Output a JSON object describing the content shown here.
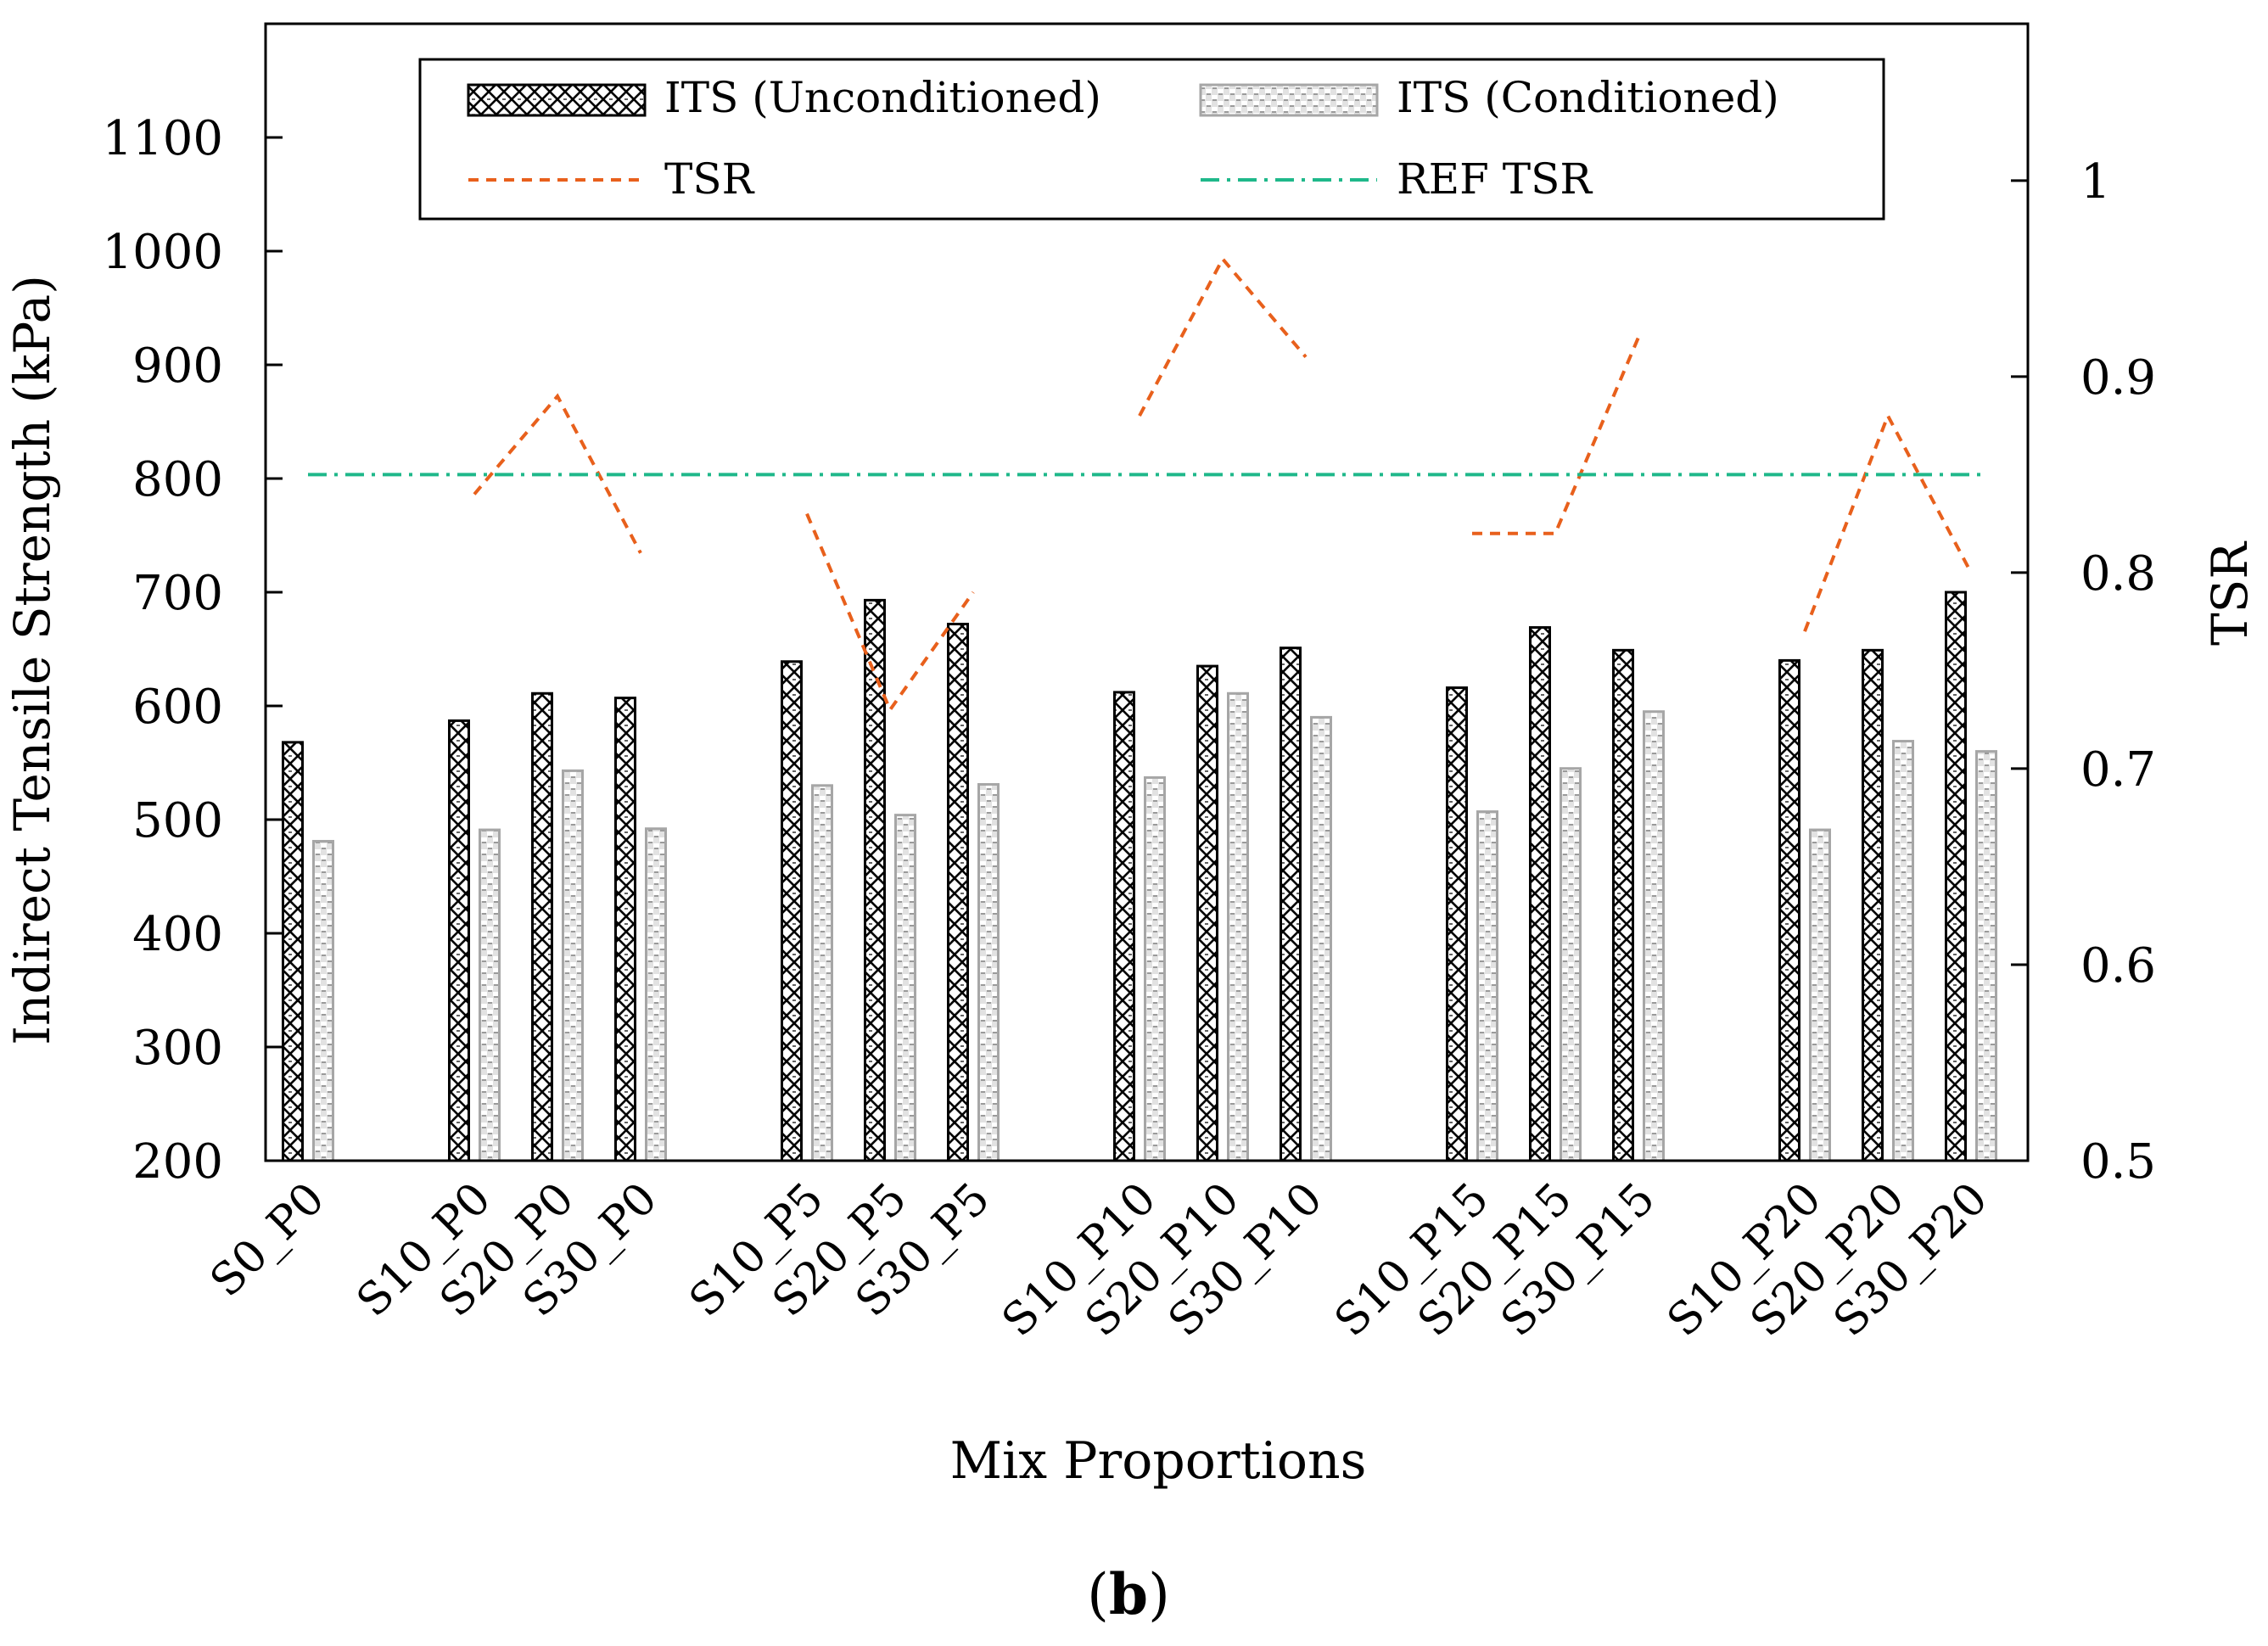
{
  "chart_data": {
    "type": "bar",
    "title": "",
    "panel_label": "b",
    "xlabel": "Mix Proportions",
    "ylabel": "Indirect Tensile Strength (kPa)",
    "y2label": "TSR",
    "ylim": [
      200,
      1200
    ],
    "y2lim": [
      0.5,
      1.08
    ],
    "yticks": [
      "200",
      "300",
      "400",
      "500",
      "600",
      "700",
      "800",
      "900",
      "1000",
      "1100"
    ],
    "y2ticks": [
      "0.5",
      "0.6",
      "0.7",
      "0.8",
      "0.9",
      "1"
    ],
    "groups": [
      {
        "categories": [
          "S0_P0"
        ]
      },
      {
        "categories": [
          "S10_P0",
          "S20_P0",
          "S30_P0"
        ]
      },
      {
        "categories": [
          "S10_P5",
          "S20_P5",
          "S30_P5"
        ]
      },
      {
        "categories": [
          "S10_P10",
          "S20_P10",
          "S30_P10"
        ]
      },
      {
        "categories": [
          "S10_P15",
          "S20_P15",
          "S30_P15"
        ]
      },
      {
        "categories": [
          "S10_P20",
          "S20_P20",
          "S30_P20"
        ]
      }
    ],
    "series": [
      {
        "name": "ITS (Unconditioned)",
        "kind": "bar",
        "color": "#000000",
        "values": [
          568,
          587,
          611,
          607,
          639,
          693,
          672,
          612,
          635,
          651,
          616,
          669,
          649,
          640,
          649,
          700
        ]
      },
      {
        "name": "ITS (Conditioned)",
        "kind": "bar",
        "color": "#a6a6a6",
        "values": [
          481,
          491,
          543,
          492,
          530,
          504,
          531,
          537,
          611,
          590,
          507,
          545,
          595,
          491,
          569,
          560
        ]
      },
      {
        "name": "TSR",
        "kind": "line",
        "color": "#e8601c",
        "axis": "right",
        "values": [
          null,
          0.84,
          0.89,
          0.81,
          0.83,
          0.73,
          0.79,
          0.88,
          0.96,
          0.91,
          0.82,
          0.82,
          0.92,
          0.77,
          0.88,
          0.8
        ]
      },
      {
        "name": "REF TSR",
        "kind": "reference",
        "color": "#1fb88a",
        "axis": "right",
        "value": 0.85
      }
    ]
  }
}
